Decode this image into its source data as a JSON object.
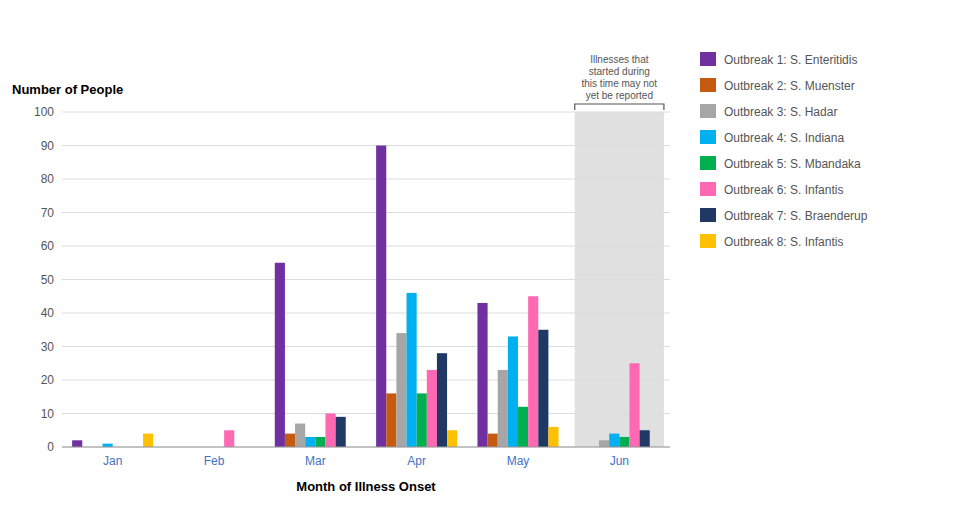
{
  "chart_data": {
    "type": "bar",
    "title": "Number of People",
    "xlabel": "Month of Illness Onset",
    "categories": [
      "Jan",
      "Feb",
      "Mar",
      "Apr",
      "May",
      "Jun"
    ],
    "series": [
      {
        "name": "Outbreak 1: S. Enteritidis",
        "color": "#7030A0",
        "values": [
          2,
          0,
          55,
          90,
          43,
          0
        ]
      },
      {
        "name": "Outbreak 2: S. Muenster",
        "color": "#C55A11",
        "values": [
          0,
          0,
          4,
          16,
          4,
          0
        ]
      },
      {
        "name": "Outbreak 3: S. Hadar",
        "color": "#A6A6A6",
        "values": [
          0,
          0,
          7,
          34,
          23,
          2
        ]
      },
      {
        "name": "Outbreak 4: S. Indiana",
        "color": "#00B0F0",
        "values": [
          1,
          0,
          3,
          46,
          33,
          4
        ]
      },
      {
        "name": "Outbreak 5: S. Mbandaka",
        "color": "#00B050",
        "values": [
          0,
          0,
          3,
          16,
          12,
          3
        ]
      },
      {
        "name": "Outbreak 6: S. Infantis",
        "color": "#FF69B4",
        "values": [
          0,
          5,
          10,
          23,
          45,
          25
        ]
      },
      {
        "name": "Outbreak 7: S. Braenderup",
        "color": "#1F3864",
        "values": [
          0,
          0,
          9,
          28,
          35,
          5
        ]
      },
      {
        "name": "Outbreak 8: S. Infantis",
        "color": "#FFC000",
        "values": [
          4,
          0,
          0,
          5,
          6,
          0
        ]
      }
    ],
    "ylim": [
      0,
      100
    ],
    "yticks": [
      0,
      10,
      20,
      30,
      40,
      50,
      60,
      70,
      80,
      90,
      100
    ],
    "grid": true,
    "legend": "right",
    "annotations": [
      {
        "text": "Illnesses that\nstarted during\nthis time may not\nyet be reported",
        "category": "Jun"
      }
    ]
  }
}
